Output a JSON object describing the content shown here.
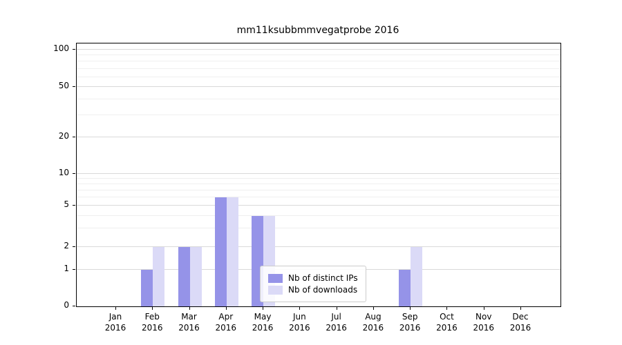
{
  "chart_data": {
    "type": "bar",
    "title": "mm11ksubbmmvegatprobe 2016",
    "categories": [
      "Jan",
      "Feb",
      "Mar",
      "Apr",
      "May",
      "Jun",
      "Jul",
      "Aug",
      "Sep",
      "Oct",
      "Nov",
      "Dec"
    ],
    "category_year": "2016",
    "series": [
      {
        "name": "Nb of distinct IPs",
        "color": "#9593e8",
        "values": [
          0,
          1,
          2,
          6,
          4,
          0,
          0,
          0,
          1,
          0,
          0,
          0
        ]
      },
      {
        "name": "Nb of downloads",
        "color": "#dbdaf7",
        "values": [
          0,
          2,
          2,
          6,
          4,
          0,
          0,
          0,
          2,
          0,
          0,
          0
        ]
      }
    ],
    "y_axis": {
      "scale": "symlog",
      "ticks": [
        0,
        1,
        2,
        5,
        10,
        20,
        50,
        100
      ],
      "minor_ticks": [
        3,
        4,
        6,
        7,
        8,
        9,
        30,
        40,
        60,
        70,
        80,
        90
      ],
      "ylim": [
        0,
        110
      ]
    },
    "x_axis": {
      "label": "",
      "tick_format": "month-over-year"
    },
    "legend": {
      "position": "lower-center-inside"
    },
    "grid": "horizontal",
    "colors": {
      "major_grid": "#d9d9d9",
      "minor_grid": "#efefef",
      "axis": "#000000"
    }
  }
}
